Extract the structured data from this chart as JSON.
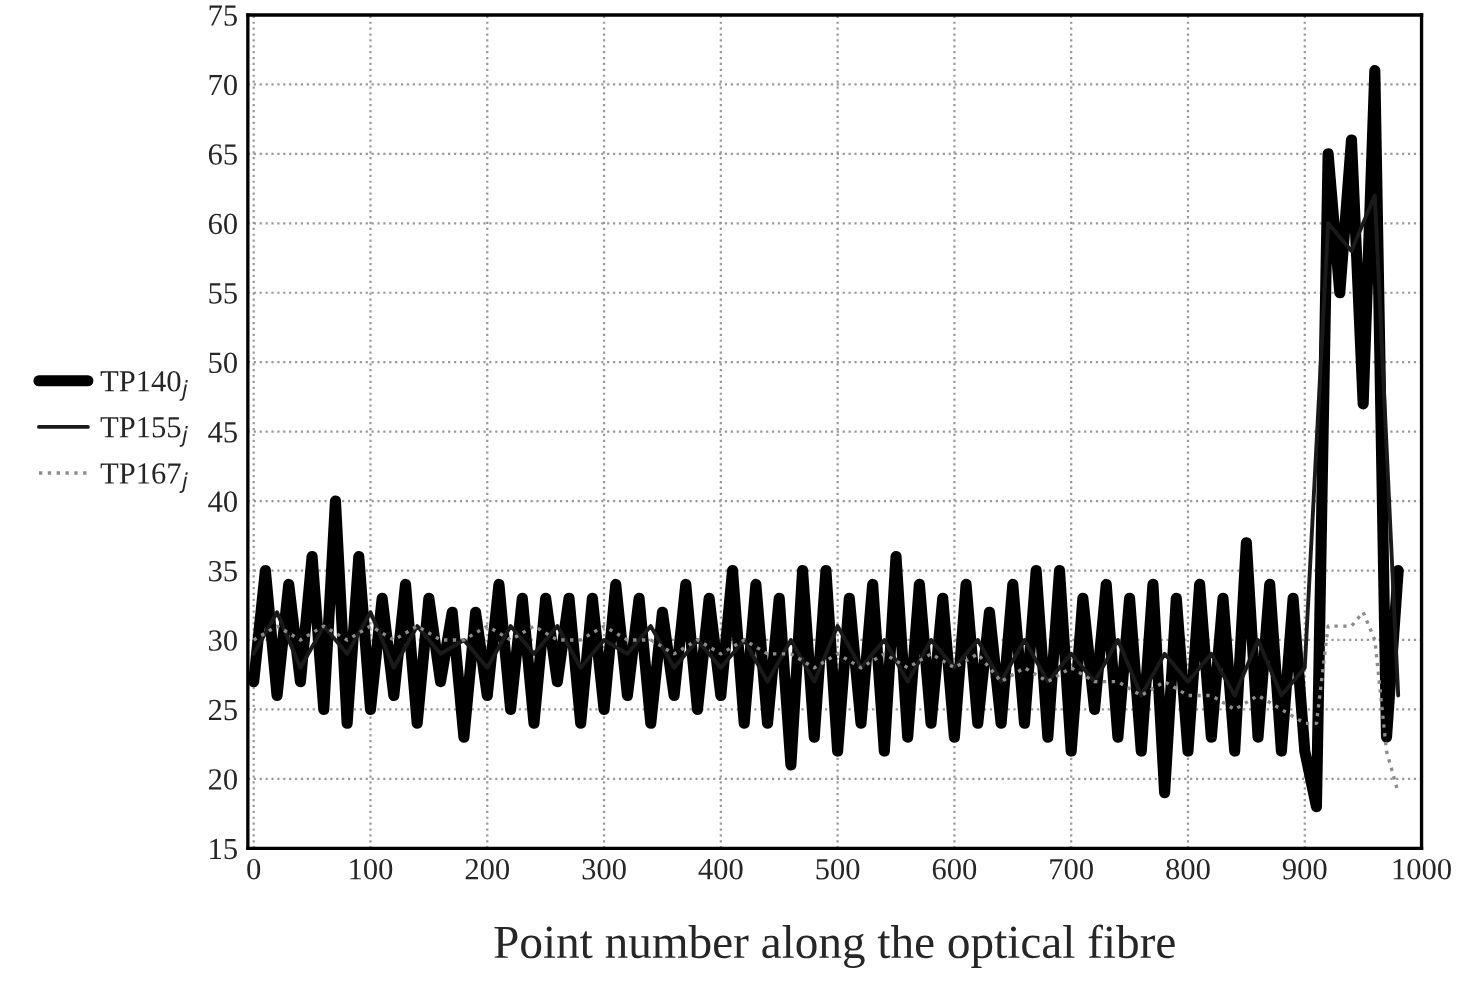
{
  "chart_data": {
    "type": "line",
    "xlabel": "Point number along the optical fibre",
    "xlim": [
      -5,
      1000
    ],
    "xticks": [
      0,
      100,
      200,
      300,
      400,
      500,
      600,
      700,
      800,
      900,
      1000
    ],
    "ylim": [
      15,
      75
    ],
    "yticks": [
      15,
      20,
      25,
      30,
      35,
      40,
      45,
      50,
      55,
      60,
      65,
      70,
      75
    ],
    "grid": true,
    "legend": "left",
    "marker": "none",
    "series": [
      {
        "name": "TP140$_{j}$",
        "color": "#000000",
        "line_style": "solid",
        "x": [
          0,
          10,
          20,
          30,
          40,
          50,
          60,
          70,
          80,
          90,
          100,
          110,
          120,
          130,
          140,
          150,
          160,
          170,
          180,
          190,
          200,
          210,
          220,
          230,
          240,
          250,
          260,
          270,
          280,
          290,
          300,
          310,
          320,
          330,
          340,
          350,
          360,
          370,
          380,
          390,
          400,
          410,
          420,
          430,
          440,
          450,
          460,
          470,
          480,
          490,
          500,
          510,
          520,
          530,
          540,
          550,
          560,
          570,
          580,
          590,
          600,
          610,
          620,
          630,
          640,
          650,
          660,
          670,
          680,
          690,
          700,
          710,
          720,
          730,
          740,
          750,
          760,
          770,
          780,
          790,
          800,
          810,
          820,
          830,
          840,
          850,
          860,
          870,
          880,
          890,
          900,
          910,
          920,
          930,
          940,
          950,
          960,
          970,
          980
        ],
        "values": [
          27,
          35,
          26,
          34,
          27,
          36,
          25,
          40,
          24,
          36,
          25,
          33,
          26,
          34,
          24,
          33,
          27,
          32,
          23,
          32,
          26,
          34,
          25,
          33,
          24,
          33,
          27,
          33,
          24,
          33,
          25,
          34,
          26,
          33,
          24,
          32,
          26,
          34,
          25,
          33,
          26,
          35,
          24,
          34,
          24,
          33,
          21,
          35,
          23,
          35,
          22,
          33,
          24,
          34,
          22,
          36,
          23,
          34,
          24,
          33,
          23,
          34,
          24,
          32,
          24,
          34,
          24,
          35,
          23,
          35,
          22,
          33,
          25,
          34,
          23,
          33,
          22,
          34,
          19,
          33,
          22,
          34,
          23,
          33,
          22,
          37,
          23,
          34,
          22,
          33,
          22,
          18,
          65,
          55,
          66,
          47,
          71,
          23,
          35
        ]
      },
      {
        "name": "TP155$_{j}$",
        "color": "#1a1a1a",
        "line_style": "solid",
        "x": [
          0,
          20,
          40,
          60,
          80,
          100,
          120,
          140,
          160,
          180,
          200,
          220,
          240,
          260,
          280,
          300,
          320,
          340,
          360,
          380,
          400,
          420,
          440,
          460,
          480,
          500,
          520,
          540,
          560,
          580,
          600,
          620,
          640,
          660,
          680,
          700,
          720,
          740,
          760,
          780,
          800,
          820,
          840,
          860,
          880,
          900,
          920,
          940,
          960,
          980
        ],
        "values": [
          29,
          32,
          28,
          31,
          29,
          32,
          28,
          31,
          29,
          30,
          28,
          31,
          29,
          31,
          28,
          30,
          29,
          31,
          28,
          30,
          28,
          30,
          27,
          30,
          27,
          31,
          28,
          30,
          27,
          30,
          28,
          30,
          27,
          30,
          27,
          29,
          27,
          30,
          26,
          29,
          27,
          29,
          26,
          30,
          26,
          28,
          60,
          58,
          62,
          26
        ]
      },
      {
        "name": "TP167$_{j}$",
        "color": "#8c8c8c",
        "line_style": "dotted",
        "x": [
          0,
          20,
          40,
          60,
          80,
          100,
          120,
          140,
          160,
          180,
          200,
          220,
          240,
          260,
          280,
          300,
          320,
          340,
          360,
          380,
          400,
          420,
          440,
          460,
          480,
          500,
          520,
          540,
          560,
          580,
          600,
          620,
          640,
          660,
          680,
          700,
          720,
          740,
          760,
          780,
          800,
          820,
          840,
          860,
          880,
          900,
          910,
          920,
          940,
          950,
          960,
          970,
          980
        ],
        "values": [
          30,
          31,
          30,
          31,
          30,
          31,
          30,
          31,
          30,
          30,
          31,
          30,
          31,
          30,
          30,
          31,
          30,
          30,
          29,
          30,
          29,
          30,
          29,
          29,
          28,
          29,
          28,
          29,
          28,
          29,
          28,
          29,
          27,
          28,
          27,
          28,
          27,
          27,
          26,
          27,
          26,
          26,
          25,
          26,
          25,
          24,
          24,
          31,
          31,
          32,
          30,
          22,
          19
        ]
      }
    ]
  }
}
